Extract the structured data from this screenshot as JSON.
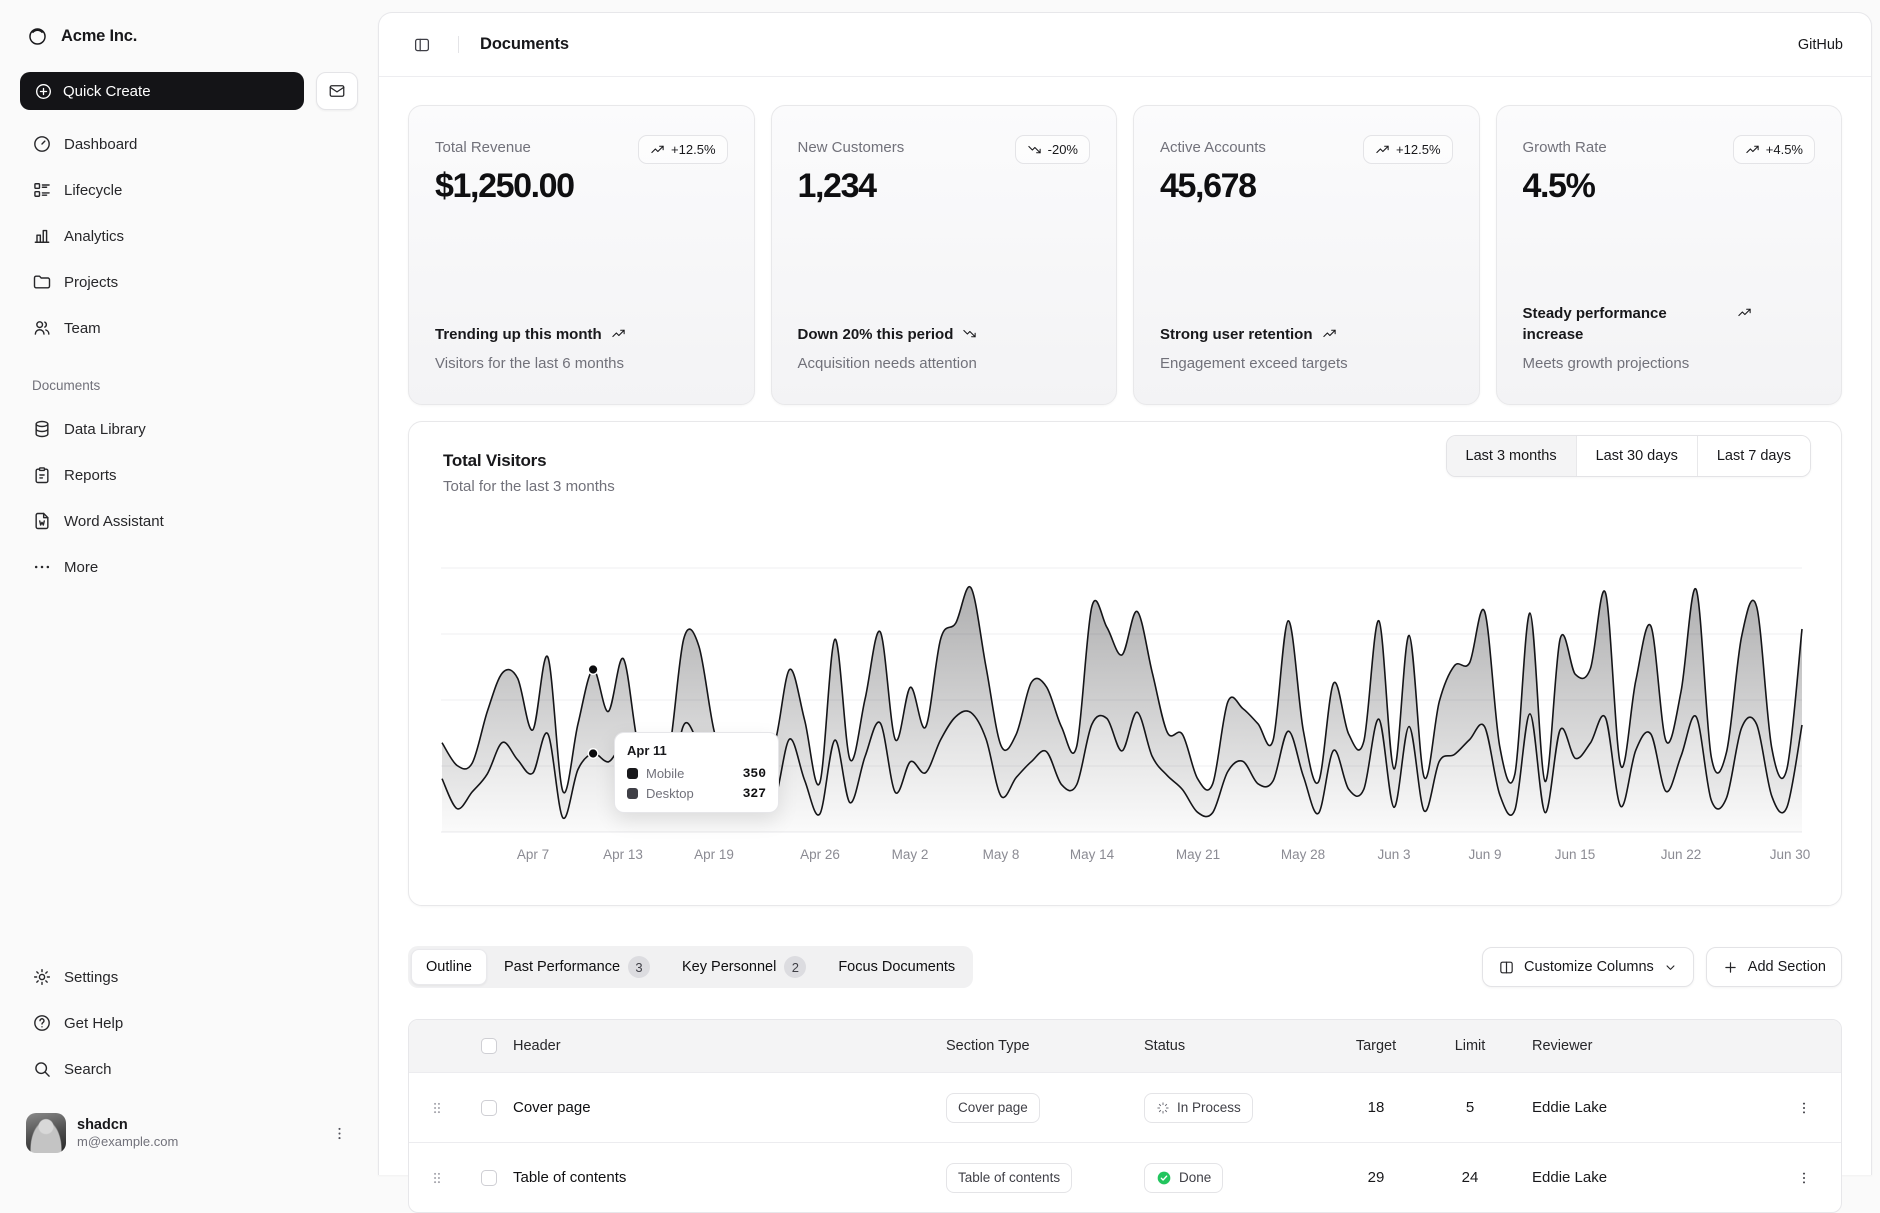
{
  "colors": {
    "primary": "#18181b",
    "muted": "#71717a",
    "border": "#e5e5e8",
    "green": "#22c55e",
    "bg": "#fafafa",
    "panel": "#ffffff"
  },
  "sidebar": {
    "brand": "Acme Inc.",
    "quick_create": "Quick Create",
    "nav": [
      {
        "icon": "gauge",
        "label": "Dashboard"
      },
      {
        "icon": "list-details",
        "label": "Lifecycle"
      },
      {
        "icon": "chart-bar",
        "label": "Analytics"
      },
      {
        "icon": "folder",
        "label": "Projects"
      },
      {
        "icon": "users",
        "label": "Team"
      }
    ],
    "section_label": "Documents",
    "doc_nav": [
      {
        "icon": "database",
        "label": "Data Library"
      },
      {
        "icon": "clipboard",
        "label": "Reports"
      },
      {
        "icon": "file-w",
        "label": "Word Assistant"
      },
      {
        "icon": "dots",
        "label": "More"
      }
    ],
    "footer_nav": [
      {
        "icon": "gear",
        "label": "Settings"
      },
      {
        "icon": "help-circle",
        "label": "Get Help"
      },
      {
        "icon": "search",
        "label": "Search"
      }
    ],
    "user": {
      "name": "shadcn",
      "email": "m@example.com"
    }
  },
  "header": {
    "title": "Documents",
    "action": "GitHub"
  },
  "stats": [
    {
      "label": "Total Revenue",
      "badge": "+12.5%",
      "trend_icon": "trending-up",
      "value": "$1,250.00",
      "footer_title": "Trending up this month",
      "footer_desc": "Visitors for the last 6 months"
    },
    {
      "label": "New Customers",
      "badge": "-20%",
      "trend_icon": "trending-down",
      "value": "1,234",
      "footer_title": "Down 20% this period",
      "footer_desc": "Acquisition needs attention"
    },
    {
      "label": "Active Accounts",
      "badge": "+12.5%",
      "trend_icon": "trending-up",
      "value": "45,678",
      "footer_title": "Strong user retention",
      "footer_desc": "Engagement exceed targets"
    },
    {
      "label": "Growth Rate",
      "badge": "+4.5%",
      "trend_icon": "trending-up",
      "value": "4.5%",
      "footer_title": "Steady performance increase",
      "footer_desc": "Meets growth projections"
    }
  ],
  "chart": {
    "title": "Total Visitors",
    "subtitle": "Total for the last 3 months",
    "ranges": [
      "Last 3 months",
      "Last 30 days",
      "Last 7 days"
    ],
    "selected_range": "Last 3 months",
    "tooltip": {
      "date": "Apr 11",
      "day": 11,
      "rows": [
        {
          "label": "Mobile",
          "value": "350",
          "swatch": "#18181b"
        },
        {
          "label": "Desktop",
          "value": "327",
          "swatch": "#3f3f46"
        }
      ]
    },
    "chart_data": {
      "type": "area",
      "stacked": true,
      "grid": "horizontal",
      "x_start": "Apr 1",
      "x_end": "Jun 30",
      "ylim": [
        0,
        1100
      ],
      "x_ticks": [
        {
          "label": "Apr 7",
          "day": 7
        },
        {
          "label": "Apr 13",
          "day": 13
        },
        {
          "label": "Apr 19",
          "day": 19
        },
        {
          "label": "Apr 26",
          "day": 26
        },
        {
          "label": "May 2",
          "day": 32
        },
        {
          "label": "May 8",
          "day": 38
        },
        {
          "label": "May 14",
          "day": 44
        },
        {
          "label": "May 21",
          "day": 51
        },
        {
          "label": "May 28",
          "day": 58
        },
        {
          "label": "Jun 3",
          "day": 64
        },
        {
          "label": "Jun 9",
          "day": 70
        },
        {
          "label": "Jun 15",
          "day": 76
        },
        {
          "label": "Jun 22",
          "day": 83
        },
        {
          "label": "Jun 30",
          "day": 91
        }
      ],
      "series": [
        {
          "name": "Desktop",
          "values": [
            222,
            97,
            167,
            242,
            373,
            301,
            245,
            409,
            59,
            261,
            327,
            292,
            342,
            137,
            120,
            138,
            446,
            364,
            243,
            89,
            137,
            224,
            138,
            387,
            215,
            75,
            383,
            122,
            315,
            454,
            165,
            293,
            247,
            385,
            481,
            498,
            388,
            149,
            227,
            293,
            335,
            197,
            197,
            448,
            473,
            338,
            499,
            315,
            235,
            177,
            82,
            81,
            252,
            294,
            201,
            213,
            420,
            233,
            78,
            340,
            178,
            178,
            470,
            103,
            439,
            88,
            294,
            323,
            385,
            438,
            155,
            92,
            492,
            81,
            426,
            307,
            371,
            475,
            107,
            341,
            408,
            169,
            317,
            480,
            132,
            141,
            434,
            448,
            149,
            103,
            446
          ]
        },
        {
          "name": "Mobile",
          "values": [
            150,
            180,
            120,
            260,
            290,
            340,
            180,
            320,
            110,
            190,
            350,
            210,
            380,
            220,
            170,
            190,
            360,
            410,
            180,
            150,
            200,
            170,
            230,
            290,
            250,
            130,
            420,
            180,
            240,
            380,
            220,
            310,
            190,
            420,
            390,
            520,
            300,
            210,
            180,
            330,
            270,
            240,
            160,
            490,
            380,
            400,
            420,
            350,
            180,
            230,
            140,
            120,
            290,
            220,
            250,
            170,
            460,
            190,
            130,
            280,
            230,
            200,
            410,
            160,
            380,
            140,
            250,
            370,
            320,
            480,
            200,
            150,
            420,
            130,
            380,
            350,
            310,
            520,
            170,
            290,
            450,
            210,
            270,
            530,
            180,
            190,
            380,
            490,
            200,
            160,
            400
          ]
        }
      ]
    }
  },
  "tabs": [
    {
      "label": "Outline",
      "selected": true
    },
    {
      "label": "Past Performance",
      "badge": "3"
    },
    {
      "label": "Key Personnel",
      "badge": "2"
    },
    {
      "label": "Focus Documents"
    }
  ],
  "actions": {
    "customize": "Customize Columns",
    "add_section": "Add Section"
  },
  "table": {
    "columns": [
      "Header",
      "Section Type",
      "Status",
      "Target",
      "Limit",
      "Reviewer"
    ],
    "rows": [
      {
        "header": "Cover page",
        "type": "Cover page",
        "status": "In Process",
        "status_icon": "loader",
        "target": "18",
        "limit": "5",
        "reviewer": "Eddie Lake"
      },
      {
        "header": "Table of contents",
        "type": "Table of contents",
        "status": "Done",
        "status_icon": "check-green",
        "target": "29",
        "limit": "24",
        "reviewer": "Eddie Lake"
      }
    ]
  }
}
